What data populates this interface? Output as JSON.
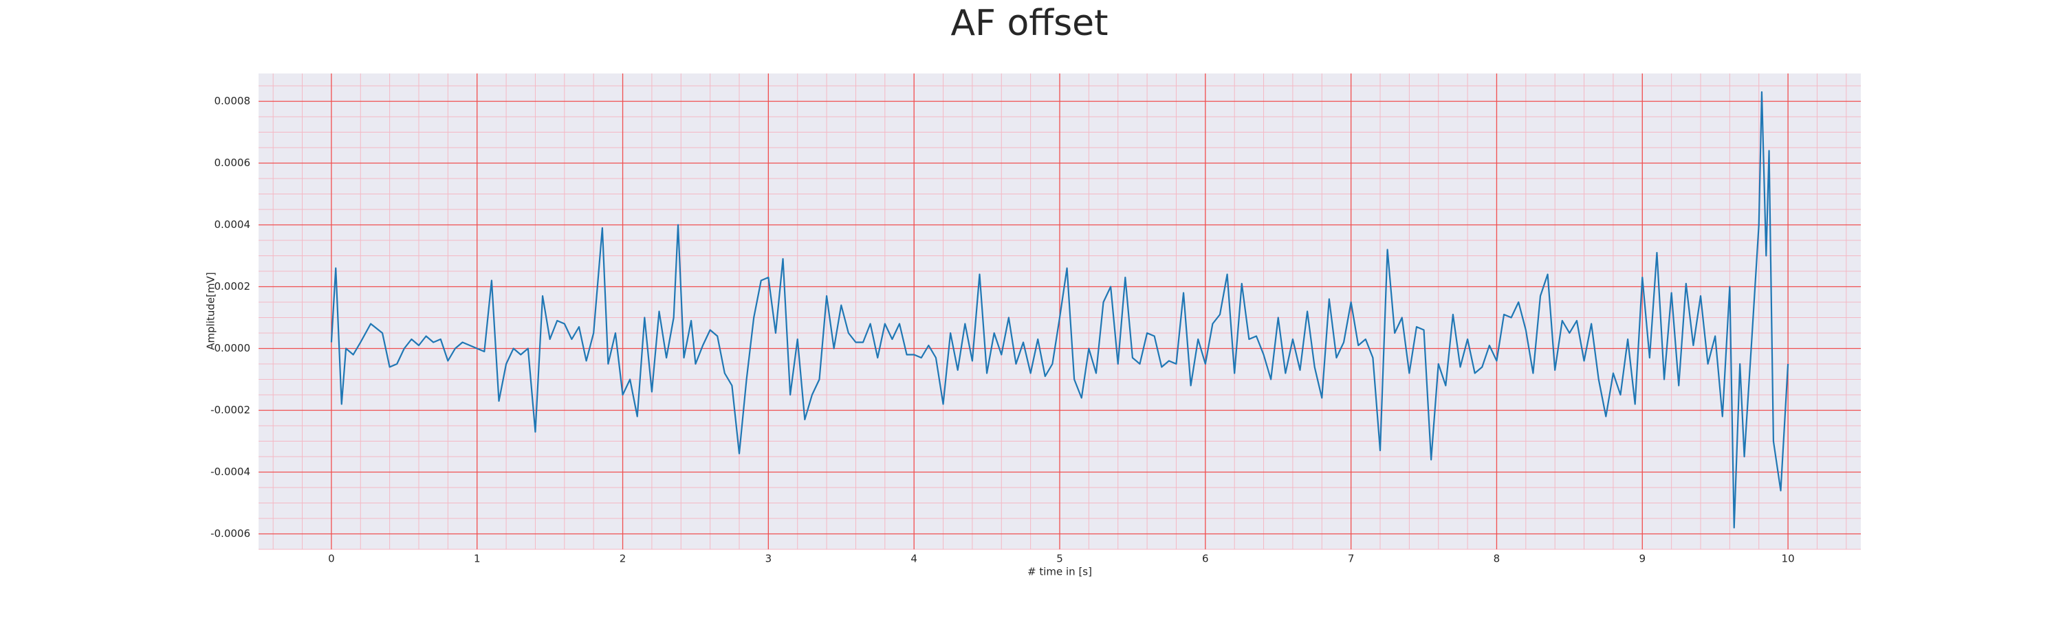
{
  "chart_data": {
    "type": "line",
    "title": "AF offset",
    "xlabel": "# time in [s]",
    "ylabel": "Amplitude[mV]",
    "xlim": [
      -0.5,
      10.5
    ],
    "xticks": [
      0,
      1,
      2,
      3,
      4,
      5,
      6,
      7,
      8,
      9,
      10
    ],
    "ylim": [
      -0.00065,
      0.00089
    ],
    "yticks": [
      {
        "value": -0.0006,
        "label": "-0.0006"
      },
      {
        "value": -0.0004,
        "label": "-0.0004"
      },
      {
        "value": -0.0002,
        "label": "-0.0002"
      },
      {
        "value": 0,
        "label": "0.0000"
      },
      {
        "value": 0.0002,
        "label": "0.0002"
      },
      {
        "value": 0.0004,
        "label": "0.0004"
      },
      {
        "value": 0.0006,
        "label": "0.0006"
      },
      {
        "value": 0.0008,
        "label": "0.0008"
      }
    ],
    "grid": true,
    "minor_grid": true,
    "grid_color": "#f05050",
    "minor_grid_color": "#f4b8c4",
    "background": "#eaeaf2",
    "color": "#1f77b4",
    "x": [
      0,
      0.03,
      0.07,
      0.1,
      0.15,
      0.2,
      0.27,
      0.35,
      0.4,
      0.45,
      0.5,
      0.55,
      0.6,
      0.65,
      0.7,
      0.75,
      0.8,
      0.85,
      0.9,
      0.95,
      1.0,
      1.05,
      1.1,
      1.15,
      1.2,
      1.25,
      1.3,
      1.35,
      1.4,
      1.45,
      1.5,
      1.55,
      1.6,
      1.65,
      1.7,
      1.75,
      1.8,
      1.86,
      1.9,
      1.95,
      2.0,
      2.05,
      2.1,
      2.15,
      2.2,
      2.25,
      2.3,
      2.35,
      2.38,
      2.42,
      2.47,
      2.5,
      2.55,
      2.6,
      2.65,
      2.7,
      2.75,
      2.8,
      2.85,
      2.9,
      2.95,
      3.0,
      3.05,
      3.1,
      3.15,
      3.2,
      3.25,
      3.3,
      3.35,
      3.4,
      3.45,
      3.5,
      3.55,
      3.6,
      3.65,
      3.7,
      3.75,
      3.8,
      3.85,
      3.9,
      3.95,
      4.0,
      4.05,
      4.1,
      4.15,
      4.2,
      4.25,
      4.3,
      4.35,
      4.4,
      4.45,
      4.5,
      4.55,
      4.6,
      4.65,
      4.7,
      4.75,
      4.8,
      4.85,
      4.9,
      4.95,
      5.0,
      5.05,
      5.1,
      5.15,
      5.2,
      5.25,
      5.3,
      5.35,
      5.4,
      5.45,
      5.5,
      5.55,
      5.6,
      5.65,
      5.7,
      5.75,
      5.8,
      5.85,
      5.9,
      5.95,
      6.0,
      6.05,
      6.1,
      6.15,
      6.2,
      6.25,
      6.3,
      6.35,
      6.4,
      6.45,
      6.5,
      6.55,
      6.6,
      6.65,
      6.7,
      6.75,
      6.8,
      6.85,
      6.9,
      6.95,
      7.0,
      7.05,
      7.1,
      7.15,
      7.2,
      7.25,
      7.3,
      7.35,
      7.4,
      7.45,
      7.5,
      7.55,
      7.6,
      7.65,
      7.7,
      7.75,
      7.8,
      7.85,
      7.9,
      7.95,
      8.0,
      8.05,
      8.1,
      8.15,
      8.2,
      8.25,
      8.3,
      8.35,
      8.4,
      8.45,
      8.5,
      8.55,
      8.6,
      8.65,
      8.7,
      8.75,
      8.8,
      8.85,
      8.9,
      8.95,
      9.0,
      9.05,
      9.1,
      9.15,
      9.2,
      9.25,
      9.3,
      9.35,
      9.4,
      9.45,
      9.5,
      9.55,
      9.6,
      9.63,
      9.67,
      9.7,
      9.75,
      9.8,
      9.82,
      9.85,
      9.87,
      9.9,
      9.95,
      10.0
    ],
    "values": [
      2e-05,
      0.00026,
      -0.00018,
      0,
      -2e-05,
      2e-05,
      8e-05,
      5e-05,
      -6e-05,
      -5e-05,
      0,
      3e-05,
      1e-05,
      4e-05,
      2e-05,
      3e-05,
      -4e-05,
      0,
      2e-05,
      1e-05,
      0,
      -1e-05,
      0.00022,
      -0.00017,
      -5e-05,
      0,
      -2e-05,
      0,
      -0.00027,
      0.00017,
      3e-05,
      9e-05,
      8e-05,
      3e-05,
      7e-05,
      -4e-05,
      5e-05,
      0.00039,
      -5e-05,
      5e-05,
      -0.00015,
      -0.0001,
      -0.00022,
      0.0001,
      -0.00014,
      0.00012,
      -3e-05,
      0.0001,
      0.0004,
      -3e-05,
      9e-05,
      -5e-05,
      1e-05,
      6e-05,
      4e-05,
      -8e-05,
      -0.00012,
      -0.00034,
      -0.0001,
      0.0001,
      0.00022,
      0.00023,
      5e-05,
      0.00029,
      -0.00015,
      3e-05,
      -0.00023,
      -0.00015,
      -0.0001,
      0.00017,
      0,
      0.00014,
      5e-05,
      2e-05,
      2e-05,
      8e-05,
      -3e-05,
      8e-05,
      3e-05,
      8e-05,
      -2e-05,
      -2e-05,
      -3e-05,
      1e-05,
      -3e-05,
      -0.00018,
      5e-05,
      -7e-05,
      8e-05,
      -4e-05,
      0.00024,
      -8e-05,
      5e-05,
      -2e-05,
      0.0001,
      -5e-05,
      2e-05,
      -8e-05,
      3e-05,
      -9e-05,
      -5e-05,
      0.0001,
      0.00026,
      -0.0001,
      -0.00016,
      0,
      -8e-05,
      0.00015,
      0.0002,
      -5e-05,
      0.00023,
      -3e-05,
      -5e-05,
      5e-05,
      4e-05,
      -6e-05,
      -4e-05,
      -5e-05,
      0.00018,
      -0.00012,
      3e-05,
      -5e-05,
      8e-05,
      0.00011,
      0.00024,
      -8e-05,
      0.00021,
      3e-05,
      4e-05,
      -2e-05,
      -0.0001,
      0.0001,
      -8e-05,
      3e-05,
      -7e-05,
      0.00012,
      -6e-05,
      -0.00016,
      0.00016,
      -3e-05,
      2e-05,
      0.00015,
      1e-05,
      3e-05,
      -3e-05,
      -0.00033,
      0.00032,
      5e-05,
      0.0001,
      -8e-05,
      7e-05,
      6e-05,
      -0.00036,
      -5e-05,
      -0.00012,
      0.00011,
      -6e-05,
      3e-05,
      -8e-05,
      -6e-05,
      1e-05,
      -4e-05,
      0.00011,
      0.0001,
      0.00015,
      6e-05,
      -8e-05,
      0.00017,
      0.00024,
      -7e-05,
      9e-05,
      5e-05,
      9e-05,
      -4e-05,
      8e-05,
      -0.0001,
      -0.00022,
      -8e-05,
      -0.00015,
      3e-05,
      -0.00018,
      0.00023,
      -3e-05,
      0.00031,
      -0.0001,
      0.00018,
      -0.00012,
      0.00021,
      1e-05,
      0.00017,
      -5e-05,
      4e-05,
      -0.00022,
      0.0002,
      -0.00058,
      -5e-05,
      -0.00035,
      2e-05,
      0.0004,
      0.00083,
      0.0003,
      0.00064,
      -0.0003,
      -0.00046,
      -5e-05
    ]
  }
}
